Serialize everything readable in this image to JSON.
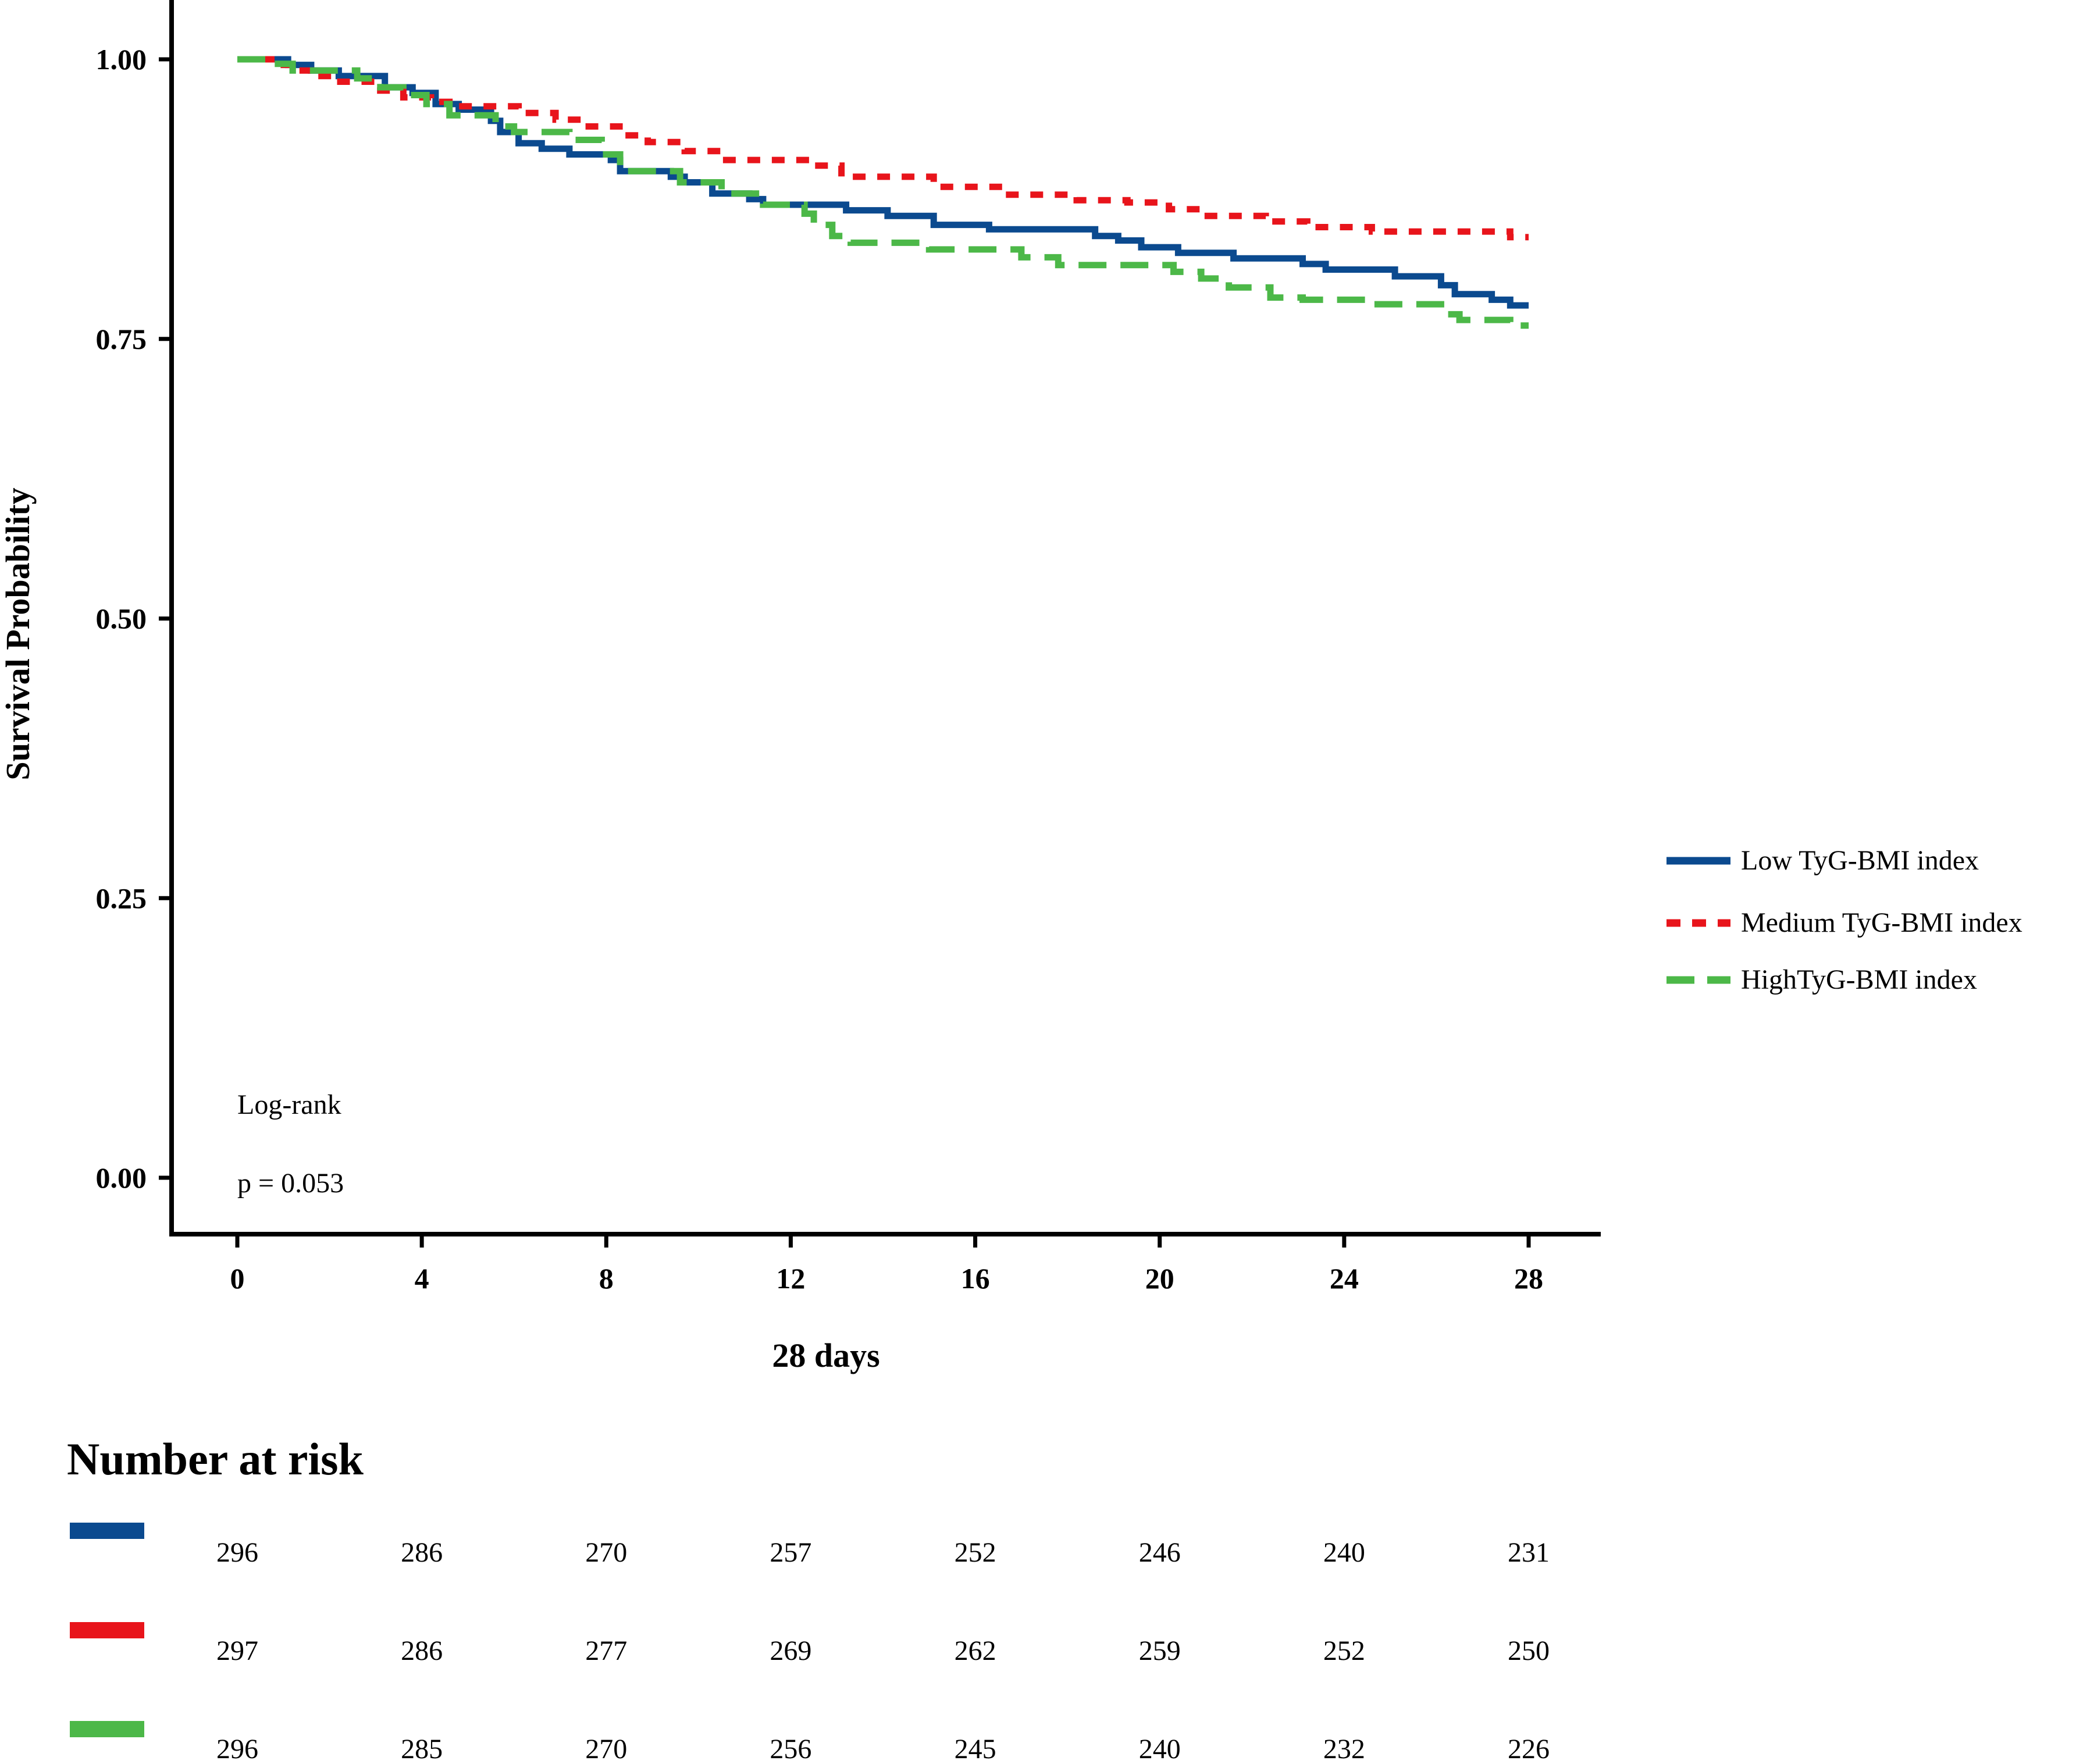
{
  "chart_data": {
    "type": "line",
    "subtype": "kaplan-meier",
    "title": "",
    "xlabel": "28 days",
    "ylabel": "Survival Probability",
    "xlim": [
      0,
      28
    ],
    "ylim": [
      0,
      1
    ],
    "x_ticks": [
      0,
      4,
      8,
      12,
      16,
      20,
      24,
      28
    ],
    "x_tick_labels": [
      "0",
      "4",
      "8",
      "12",
      "16",
      "20",
      "24",
      "28"
    ],
    "y_ticks": [
      0,
      0.25,
      0.5,
      0.75,
      1
    ],
    "y_tick_labels": [
      "0.00",
      "0.25",
      "0.50",
      "0.75",
      "1.00"
    ],
    "grid": false,
    "legend_position": "right",
    "annotations": [
      "Log-rank",
      "p = 0.053"
    ],
    "series": [
      {
        "name": "Low TyG-BMI index",
        "color": "#0b4a8f",
        "dash": "solid",
        "points": [
          [
            0,
            1.0
          ],
          [
            1.1,
            1.0
          ],
          [
            1.1,
            0.995
          ],
          [
            1.6,
            0.995
          ],
          [
            1.6,
            0.99
          ],
          [
            2.2,
            0.99
          ],
          [
            2.2,
            0.985
          ],
          [
            3.2,
            0.985
          ],
          [
            3.2,
            0.975
          ],
          [
            3.8,
            0.975
          ],
          [
            3.8,
            0.97
          ],
          [
            4.3,
            0.97
          ],
          [
            4.3,
            0.96
          ],
          [
            4.8,
            0.96
          ],
          [
            4.8,
            0.955
          ],
          [
            5.5,
            0.955
          ],
          [
            5.5,
            0.945
          ],
          [
            5.7,
            0.945
          ],
          [
            5.7,
            0.935
          ],
          [
            6.1,
            0.935
          ],
          [
            6.1,
            0.925
          ],
          [
            6.6,
            0.925
          ],
          [
            6.6,
            0.92
          ],
          [
            7.2,
            0.92
          ],
          [
            7.2,
            0.915
          ],
          [
            8.1,
            0.915
          ],
          [
            8.1,
            0.91
          ],
          [
            8.3,
            0.91
          ],
          [
            8.3,
            0.9
          ],
          [
            9.4,
            0.9
          ],
          [
            9.4,
            0.895
          ],
          [
            9.7,
            0.895
          ],
          [
            9.7,
            0.89
          ],
          [
            10.3,
            0.89
          ],
          [
            10.3,
            0.88
          ],
          [
            11.1,
            0.88
          ],
          [
            11.1,
            0.875
          ],
          [
            11.4,
            0.875
          ],
          [
            11.4,
            0.87
          ],
          [
            13.2,
            0.87
          ],
          [
            13.2,
            0.865
          ],
          [
            14.1,
            0.865
          ],
          [
            14.1,
            0.86
          ],
          [
            15.1,
            0.86
          ],
          [
            15.1,
            0.852
          ],
          [
            16.3,
            0.852
          ],
          [
            16.3,
            0.848
          ],
          [
            18.6,
            0.848
          ],
          [
            18.6,
            0.842
          ],
          [
            19.1,
            0.842
          ],
          [
            19.1,
            0.838
          ],
          [
            19.6,
            0.838
          ],
          [
            19.6,
            0.832
          ],
          [
            20.4,
            0.832
          ],
          [
            20.4,
            0.827
          ],
          [
            21.6,
            0.827
          ],
          [
            21.6,
            0.822
          ],
          [
            23.1,
            0.822
          ],
          [
            23.1,
            0.817
          ],
          [
            23.6,
            0.817
          ],
          [
            23.6,
            0.812
          ],
          [
            25.1,
            0.812
          ],
          [
            25.1,
            0.806
          ],
          [
            26.1,
            0.806
          ],
          [
            26.1,
            0.798
          ],
          [
            26.4,
            0.798
          ],
          [
            26.4,
            0.79
          ],
          [
            27.2,
            0.79
          ],
          [
            27.2,
            0.785
          ],
          [
            27.6,
            0.785
          ],
          [
            27.6,
            0.78
          ],
          [
            28,
            0.78
          ]
        ]
      },
      {
        "name": "Medium TyG-BMI index",
        "color": "#e8141b",
        "dash": "dotted",
        "points": [
          [
            0,
            1.0
          ],
          [
            0.9,
            1.0
          ],
          [
            0.9,
            0.995
          ],
          [
            1.3,
            0.995
          ],
          [
            1.3,
            0.99
          ],
          [
            1.6,
            0.99
          ],
          [
            1.6,
            0.985
          ],
          [
            2.1,
            0.985
          ],
          [
            2.1,
            0.98
          ],
          [
            3.0,
            0.98
          ],
          [
            3.0,
            0.972
          ],
          [
            3.6,
            0.972
          ],
          [
            3.6,
            0.966
          ],
          [
            4.2,
            0.966
          ],
          [
            4.2,
            0.962
          ],
          [
            4.6,
            0.962
          ],
          [
            4.6,
            0.958
          ],
          [
            6.1,
            0.958
          ],
          [
            6.1,
            0.952
          ],
          [
            6.9,
            0.952
          ],
          [
            6.9,
            0.946
          ],
          [
            7.5,
            0.946
          ],
          [
            7.5,
            0.94
          ],
          [
            8.4,
            0.94
          ],
          [
            8.4,
            0.932
          ],
          [
            8.9,
            0.932
          ],
          [
            8.9,
            0.926
          ],
          [
            9.7,
            0.926
          ],
          [
            9.7,
            0.918
          ],
          [
            10.6,
            0.918
          ],
          [
            10.6,
            0.91
          ],
          [
            12.4,
            0.91
          ],
          [
            12.4,
            0.905
          ],
          [
            13.1,
            0.905
          ],
          [
            13.1,
            0.895
          ],
          [
            15.1,
            0.895
          ],
          [
            15.1,
            0.886
          ],
          [
            16.6,
            0.886
          ],
          [
            16.6,
            0.879
          ],
          [
            18.2,
            0.879
          ],
          [
            18.2,
            0.874
          ],
          [
            19.3,
            0.874
          ],
          [
            19.3,
            0.872
          ],
          [
            20.2,
            0.872
          ],
          [
            20.2,
            0.866
          ],
          [
            20.9,
            0.866
          ],
          [
            20.9,
            0.86
          ],
          [
            22.3,
            0.86
          ],
          [
            22.3,
            0.855
          ],
          [
            23.2,
            0.855
          ],
          [
            23.2,
            0.85
          ],
          [
            24.6,
            0.85
          ],
          [
            24.6,
            0.846
          ],
          [
            27.6,
            0.846
          ],
          [
            27.6,
            0.841
          ],
          [
            28,
            0.841
          ]
        ]
      },
      {
        "name": "HighTyG-BMI index",
        "color": "#4cb848",
        "dash": "dashed",
        "points": [
          [
            0,
            1.0
          ],
          [
            0.7,
            1.0
          ],
          [
            0.7,
            0.996
          ],
          [
            1.2,
            0.996
          ],
          [
            1.2,
            0.99
          ],
          [
            2.6,
            0.99
          ],
          [
            2.6,
            0.983
          ],
          [
            3.1,
            0.983
          ],
          [
            3.1,
            0.975
          ],
          [
            3.6,
            0.975
          ],
          [
            3.6,
            0.968
          ],
          [
            4.1,
            0.968
          ],
          [
            4.1,
            0.96
          ],
          [
            4.6,
            0.96
          ],
          [
            4.6,
            0.95
          ],
          [
            5.6,
            0.95
          ],
          [
            5.6,
            0.94
          ],
          [
            6.0,
            0.94
          ],
          [
            6.0,
            0.935
          ],
          [
            7.2,
            0.935
          ],
          [
            7.2,
            0.928
          ],
          [
            7.9,
            0.928
          ],
          [
            7.9,
            0.915
          ],
          [
            8.3,
            0.915
          ],
          [
            8.3,
            0.9
          ],
          [
            9.6,
            0.9
          ],
          [
            9.6,
            0.89
          ],
          [
            10.5,
            0.89
          ],
          [
            10.5,
            0.88
          ],
          [
            11.4,
            0.88
          ],
          [
            11.4,
            0.87
          ],
          [
            12.3,
            0.87
          ],
          [
            12.3,
            0.862
          ],
          [
            12.5,
            0.862
          ],
          [
            12.5,
            0.852
          ],
          [
            12.9,
            0.852
          ],
          [
            12.9,
            0.842
          ],
          [
            13.3,
            0.842
          ],
          [
            13.3,
            0.836
          ],
          [
            15.0,
            0.836
          ],
          [
            15.0,
            0.83
          ],
          [
            17.0,
            0.83
          ],
          [
            17.0,
            0.823
          ],
          [
            17.8,
            0.823
          ],
          [
            17.8,
            0.816
          ],
          [
            20.3,
            0.816
          ],
          [
            20.3,
            0.81
          ],
          [
            20.9,
            0.81
          ],
          [
            20.9,
            0.804
          ],
          [
            21.5,
            0.804
          ],
          [
            21.5,
            0.796
          ],
          [
            22.4,
            0.796
          ],
          [
            22.4,
            0.787
          ],
          [
            23.1,
            0.787
          ],
          [
            23.1,
            0.785
          ],
          [
            24.6,
            0.785
          ],
          [
            24.6,
            0.781
          ],
          [
            26.1,
            0.781
          ],
          [
            26.1,
            0.772
          ],
          [
            26.5,
            0.772
          ],
          [
            26.5,
            0.767
          ],
          [
            27.6,
            0.767
          ],
          [
            27.6,
            0.762
          ],
          [
            28,
            0.762
          ]
        ]
      }
    ],
    "number_at_risk": {
      "title": "Number at risk",
      "rows": [
        {
          "series": "Low TyG-BMI index",
          "color": "#0b4a8f",
          "values": [
            "296",
            "286",
            "270",
            "257",
            "252",
            "246",
            "240",
            "231"
          ]
        },
        {
          "series": "Medium TyG-BMI index",
          "color": "#e8141b",
          "values": [
            "297",
            "286",
            "277",
            "269",
            "262",
            "259",
            "252",
            "250"
          ]
        },
        {
          "series": "HighTyG-BMI index",
          "color": "#4cb848",
          "values": [
            "296",
            "285",
            "270",
            "256",
            "245",
            "240",
            "232",
            "226"
          ]
        }
      ]
    }
  }
}
